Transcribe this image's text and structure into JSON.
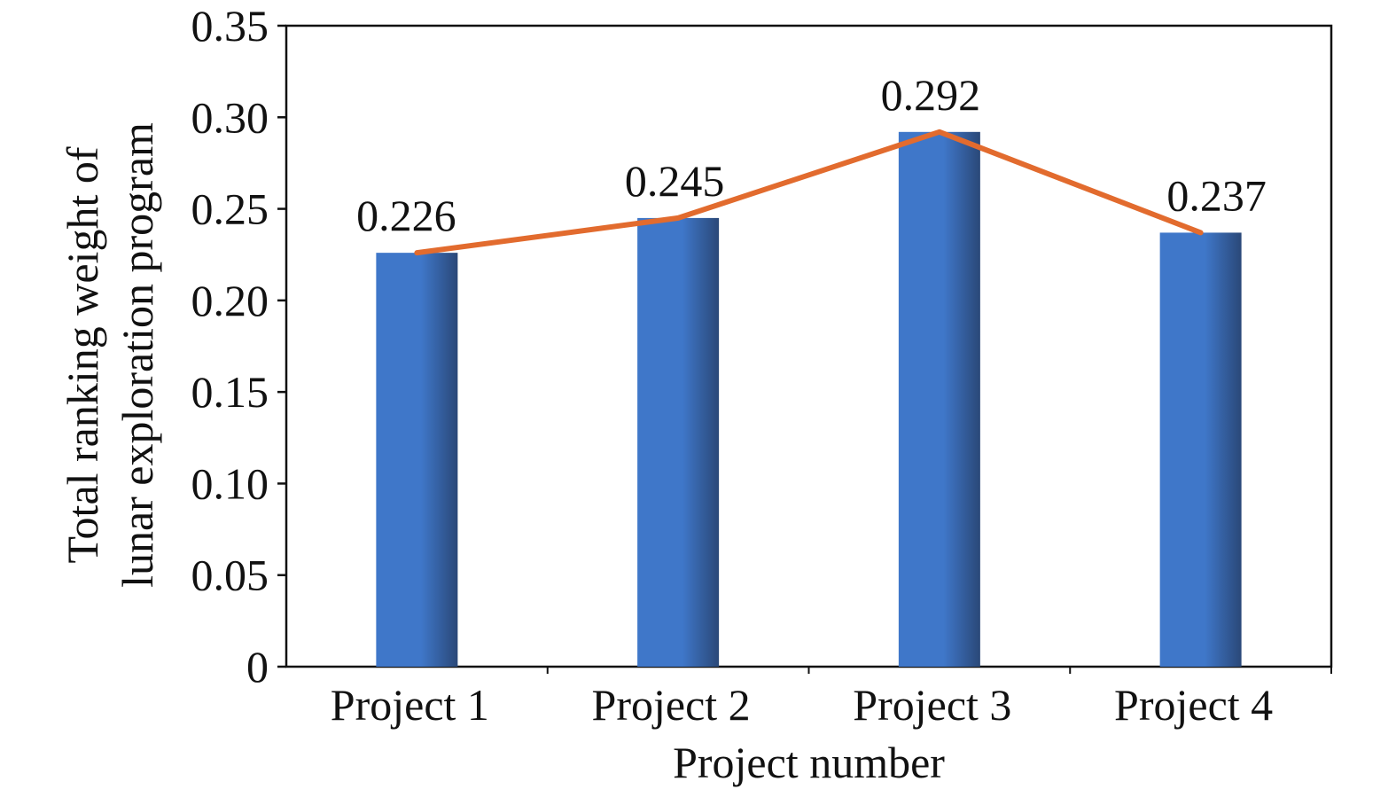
{
  "chart_data": {
    "type": "bar",
    "categories": [
      "Project 1",
      "Project 2",
      "Project 3",
      "Project 4"
    ],
    "values": [
      0.226,
      0.245,
      0.292,
      0.237
    ],
    "data_labels": [
      "0.226",
      "0.245",
      "0.292",
      "0.237"
    ],
    "overlay_line": {
      "type": "line",
      "values": [
        0.226,
        0.245,
        0.292,
        0.237
      ]
    },
    "title": "",
    "xlabel": "Project number",
    "ylabel_lines": [
      "Total ranking weight of",
      "lunar exploration program"
    ],
    "ylim": [
      0,
      0.35
    ],
    "yticks": [
      "0",
      "0.05",
      "0.10",
      "0.15",
      "0.20",
      "0.25",
      "0.30",
      "0.35"
    ],
    "grid": false,
    "legend": "none",
    "colors": {
      "bar_light": "#3f77c9",
      "bar_dark": "#2a4878",
      "line": "#e26b2e",
      "axis": "#111111"
    }
  }
}
